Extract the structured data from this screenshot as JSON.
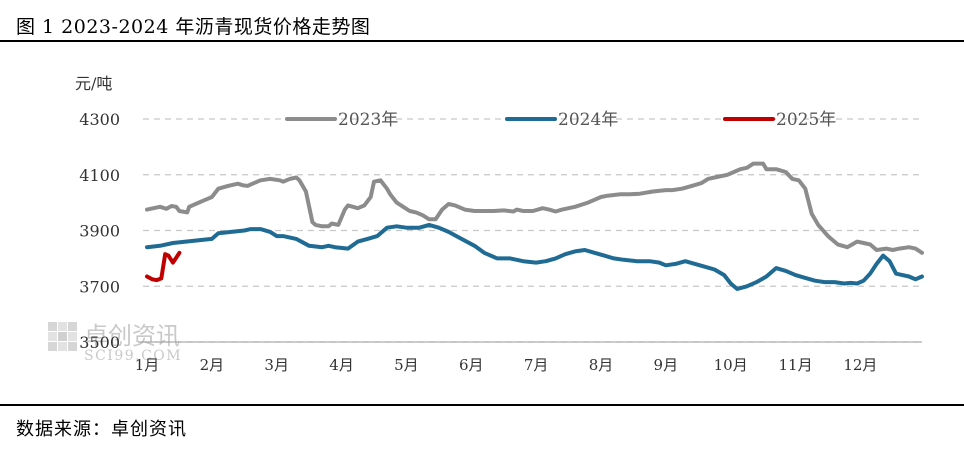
{
  "title": "图 1  2023-2024 年沥青现货价格走势图",
  "source": "数据来源：卓创资讯",
  "watermark": {
    "name": "卓创资讯",
    "url": "SCI99.COM"
  },
  "colors": {
    "s2023": "#8c8c8c",
    "s2024": "#1f6b94",
    "s2025": "#c00000",
    "grid": "#c8c8c8"
  },
  "chart_data": {
    "type": "line",
    "title": "2023-2024 年沥青现货价格走势图",
    "ylabel": "元/吨",
    "ylim": [
      3500,
      4300
    ],
    "yticks": [
      4300,
      4100,
      3900,
      3700,
      3500
    ],
    "xlabel": "",
    "xticks": [
      "1月",
      "2月",
      "3月",
      "4月",
      "5月",
      "6月",
      "7月",
      "8月",
      "9月",
      "10月",
      "11月",
      "12月"
    ],
    "xrange": [
      1,
      12.95
    ],
    "legend": {
      "position": "top",
      "entries": [
        "2023年",
        "2024年",
        "2025年"
      ]
    },
    "series": [
      {
        "name": "2023年",
        "x": [
          1.0,
          1.1,
          1.2,
          1.3,
          1.38,
          1.45,
          1.5,
          1.62,
          1.65,
          1.75,
          1.85,
          1.95,
          2.0,
          2.1,
          2.25,
          2.4,
          2.48,
          2.55,
          2.65,
          2.75,
          2.9,
          3.05,
          3.1,
          3.2,
          3.3,
          3.35,
          3.45,
          3.55,
          3.6,
          3.7,
          3.8,
          3.85,
          3.95,
          4.05,
          4.1,
          4.25,
          4.35,
          4.45,
          4.5,
          4.6,
          4.7,
          4.75,
          4.85,
          4.95,
          5.05,
          5.15,
          5.25,
          5.35,
          5.45,
          5.55,
          5.65,
          5.75,
          5.9,
          6.05,
          6.2,
          6.35,
          6.5,
          6.65,
          6.7,
          6.8,
          6.95,
          7.1,
          7.2,
          7.3,
          7.4,
          7.6,
          7.8,
          8.0,
          8.1,
          8.3,
          8.45,
          8.6,
          8.8,
          9.0,
          9.1,
          9.25,
          9.4,
          9.55,
          9.65,
          9.75,
          9.95,
          10.05,
          10.15,
          10.25,
          10.35,
          10.5,
          10.55,
          10.7,
          10.85,
          10.95,
          11.05,
          11.15,
          11.25,
          11.35,
          11.5,
          11.65,
          11.8,
          11.95,
          12.05,
          12.15,
          12.25,
          12.4,
          12.5,
          12.6,
          12.75,
          12.85,
          12.95
        ],
        "values": [
          3975,
          3980,
          3985,
          3978,
          3988,
          3985,
          3970,
          3965,
          3985,
          3995,
          4005,
          4015,
          4020,
          4050,
          4060,
          4068,
          4062,
          4060,
          4070,
          4080,
          4085,
          4080,
          4075,
          4085,
          4090,
          4080,
          4040,
          3930,
          3920,
          3915,
          3915,
          3925,
          3920,
          3975,
          3990,
          3980,
          3990,
          4020,
          4075,
          4080,
          4050,
          4030,
          4000,
          3985,
          3970,
          3965,
          3955,
          3940,
          3940,
          3975,
          3995,
          3990,
          3975,
          3970,
          3970,
          3970,
          3972,
          3968,
          3975,
          3970,
          3970,
          3980,
          3975,
          3968,
          3975,
          3985,
          4000,
          4020,
          4025,
          4030,
          4030,
          4032,
          4040,
          4045,
          4045,
          4050,
          4060,
          4070,
          4085,
          4090,
          4100,
          4110,
          4120,
          4125,
          4140,
          4140,
          4120,
          4120,
          4110,
          4085,
          4080,
          4050,
          3960,
          3920,
          3880,
          3850,
          3840,
          3860,
          3855,
          3850,
          3830,
          3835,
          3830,
          3835,
          3840,
          3835,
          3820
        ]
      },
      {
        "name": "2024年",
        "x": [
          1.0,
          1.2,
          1.4,
          1.6,
          1.8,
          2.0,
          2.1,
          2.3,
          2.5,
          2.6,
          2.75,
          2.9,
          3.0,
          3.1,
          3.3,
          3.5,
          3.7,
          3.8,
          3.9,
          4.1,
          4.25,
          4.4,
          4.55,
          4.7,
          4.85,
          5.0,
          5.2,
          5.35,
          5.5,
          5.65,
          5.85,
          6.05,
          6.2,
          6.4,
          6.6,
          6.8,
          7.0,
          7.15,
          7.3,
          7.45,
          7.6,
          7.75,
          7.9,
          8.05,
          8.2,
          8.35,
          8.55,
          8.75,
          8.9,
          9.0,
          9.15,
          9.3,
          9.45,
          9.6,
          9.75,
          9.9,
          10.0,
          10.1,
          10.25,
          10.4,
          10.55,
          10.7,
          10.85,
          11.0,
          11.15,
          11.3,
          11.45,
          11.6,
          11.75,
          11.85,
          11.95,
          12.05,
          12.15,
          12.25,
          12.35,
          12.45,
          12.55,
          12.65,
          12.75,
          12.85,
          12.95
        ],
        "values": [
          3840,
          3845,
          3855,
          3860,
          3865,
          3870,
          3890,
          3895,
          3900,
          3905,
          3905,
          3895,
          3880,
          3880,
          3870,
          3845,
          3840,
          3845,
          3840,
          3835,
          3860,
          3870,
          3880,
          3910,
          3915,
          3910,
          3910,
          3920,
          3910,
          3895,
          3870,
          3845,
          3820,
          3800,
          3800,
          3790,
          3785,
          3790,
          3800,
          3815,
          3825,
          3830,
          3820,
          3810,
          3800,
          3795,
          3790,
          3790,
          3785,
          3775,
          3780,
          3790,
          3780,
          3770,
          3760,
          3740,
          3710,
          3690,
          3700,
          3715,
          3735,
          3765,
          3755,
          3740,
          3730,
          3720,
          3715,
          3715,
          3710,
          3712,
          3710,
          3720,
          3745,
          3780,
          3810,
          3790,
          3745,
          3740,
          3735,
          3725,
          3735
        ]
      },
      {
        "name": "2025年",
        "x": [
          1.0,
          1.08,
          1.15,
          1.22,
          1.28,
          1.33,
          1.4,
          1.45,
          1.5
        ],
        "values": [
          3735,
          3725,
          3722,
          3728,
          3815,
          3810,
          3785,
          3802,
          3820
        ]
      }
    ]
  }
}
